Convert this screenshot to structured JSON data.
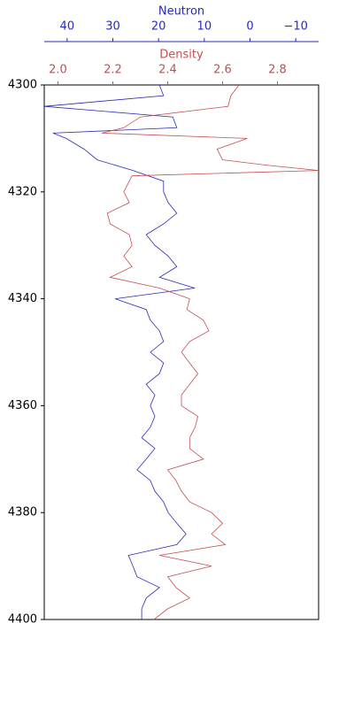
{
  "chart_data": {
    "type": "line",
    "xlabel": "Density",
    "x2label": "Neutron",
    "xlim": [
      1.95,
      2.95
    ],
    "xticks": [
      {
        "value": 2.0,
        "label": "2.0"
      },
      2.2,
      2.4,
      2.6,
      2.8
    ],
    "x2lim": [
      45,
      -15
    ],
    "x2ticks": [
      40,
      30,
      20,
      10,
      0,
      {
        "value": -10,
        "label": "−10"
      }
    ],
    "ylim": [
      4300,
      4400
    ],
    "yticks": [
      4300,
      4320,
      4340,
      4360,
      4380,
      4400
    ],
    "series": [
      {
        "name": "Neutron",
        "color": "#2a2ab8",
        "axis": "x2",
        "depth": [
          4300,
          4302,
          4304,
          4306,
          4308,
          4309,
          4310,
          4312,
          4314,
          4316,
          4318,
          4320,
          4322,
          4324,
          4326,
          4328,
          4330,
          4332,
          4334,
          4336,
          4338,
          4340,
          4342,
          4344,
          4346,
          4348,
          4350,
          4352,
          4354,
          4356,
          4358,
          4360,
          4362,
          4364,
          4366,
          4368,
          4370,
          4372,
          4374,
          4376,
          4378,
          4380,
          4382,
          4384,
          4386,
          4388,
          4390,
          4392,
          4394,
          4396,
          4398,
          4400
        ],
        "values": [
          19.8,
          18.9,
          45,
          16.9,
          16.0,
          43.1,
          40.2,
          36.3,
          33.4,
          25.6,
          18.9,
          18.9,
          17.9,
          16.0,
          18.9,
          22.7,
          20.8,
          17.9,
          16.0,
          19.8,
          12.1,
          29.5,
          22.7,
          21.8,
          19.8,
          18.9,
          21.8,
          18.9,
          19.8,
          22.7,
          20.8,
          21.8,
          20.8,
          21.8,
          23.7,
          20.8,
          22.7,
          24.7,
          21.8,
          20.8,
          18.9,
          17.9,
          16.0,
          14.0,
          16.0,
          26.6,
          25.6,
          24.7,
          19.8,
          22.7,
          23.7,
          23.7
        ]
      },
      {
        "name": "Density",
        "color": "#c44e52",
        "axis": "x",
        "depth": [
          4300,
          4302,
          4304,
          4306,
          4308,
          4309,
          4310,
          4312,
          4314,
          4315,
          4316,
          4317,
          4318,
          4320,
          4322,
          4324,
          4326,
          4328,
          4330,
          4332,
          4334,
          4336,
          4338,
          4340,
          4342,
          4344,
          4346,
          4348,
          4350,
          4352,
          4354,
          4356,
          4358,
          4360,
          4362,
          4364,
          4366,
          4368,
          4370,
          4372,
          4374,
          4376,
          4378,
          4380,
          4382,
          4384,
          4386,
          4388,
          4390,
          4392,
          4394,
          4396,
          4398,
          4400
        ],
        "values": [
          2.66,
          2.63,
          2.62,
          2.3,
          2.24,
          2.16,
          2.69,
          2.58,
          2.6,
          2.76,
          2.95,
          2.27,
          2.26,
          2.24,
          2.26,
          2.18,
          2.19,
          2.26,
          2.27,
          2.24,
          2.27,
          2.19,
          2.37,
          2.48,
          2.47,
          2.53,
          2.55,
          2.48,
          2.45,
          2.48,
          2.51,
          2.48,
          2.45,
          2.45,
          2.51,
          2.5,
          2.48,
          2.48,
          2.53,
          2.4,
          2.43,
          2.45,
          2.48,
          2.56,
          2.6,
          2.56,
          2.61,
          2.37,
          2.56,
          2.4,
          2.43,
          2.48,
          2.4,
          2.35
        ]
      }
    ]
  }
}
